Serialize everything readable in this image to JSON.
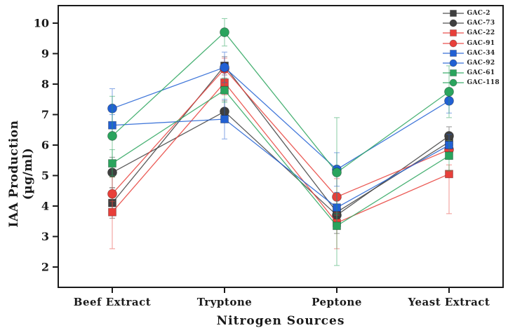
{
  "figure": {
    "background": "#ffffff",
    "axis_color": "#1a1a1a"
  },
  "chart_data": {
    "type": "line",
    "title": "",
    "xlabel": "Nitrogen Sources",
    "ylabel": "IAA Production (µg/ml)",
    "categories": [
      "Beef Extract",
      "Tryptone",
      "Peptone",
      "Yeast Extract"
    ],
    "yticks": [
      2,
      3,
      4,
      5,
      6,
      7,
      8,
      9,
      10
    ],
    "ylim": [
      1.35,
      10.6
    ],
    "grid": false,
    "legend_position": "top-right-inside",
    "series": [
      {
        "name": "GAC-2",
        "color": "#3f3f3f",
        "marker": "square",
        "values": [
          4.1,
          8.6,
          3.8,
          6.1
        ],
        "errors": [
          [
            0.5,
            0.5
          ],
          [
            0.3,
            0.3
          ],
          [
            0.5,
            0.5
          ],
          [
            0.3,
            0.3
          ]
        ]
      },
      {
        "name": "GAC-73",
        "color": "#3f3f3f",
        "marker": "circle",
        "values": [
          5.1,
          7.1,
          3.7,
          6.3
        ],
        "errors": [
          [
            0.5,
            0.5
          ],
          [
            0.35,
            0.35
          ],
          [
            0.6,
            0.6
          ],
          [
            0.3,
            0.3
          ]
        ]
      },
      {
        "name": "GAC-22",
        "color": "#e83f3a",
        "marker": "square",
        "values": [
          3.8,
          8.05,
          3.45,
          5.05
        ],
        "errors": [
          [
            1.2,
            0.35
          ],
          [
            0.4,
            0.4
          ],
          [
            0.85,
            0.35
          ],
          [
            1.3,
            0.3
          ]
        ]
      },
      {
        "name": "GAC-91",
        "color": "#e83f3a",
        "marker": "circle",
        "values": [
          4.4,
          8.5,
          4.3,
          5.85
        ],
        "errors": [
          [
            0.55,
            0.55
          ],
          [
            0.35,
            0.35
          ],
          [
            0.6,
            0.6
          ],
          [
            0.3,
            0.3
          ]
        ]
      },
      {
        "name": "GAC-34",
        "color": "#2160d3",
        "marker": "square",
        "values": [
          6.65,
          6.85,
          3.95,
          6.0
        ],
        "errors": [
          [
            0.35,
            0.35
          ],
          [
            0.65,
            0.65
          ],
          [
            0.5,
            0.5
          ],
          [
            0.35,
            0.35
          ]
        ]
      },
      {
        "name": "GAC-92",
        "color": "#2160d3",
        "marker": "circle",
        "values": [
          7.2,
          8.55,
          5.2,
          7.45
        ],
        "errors": [
          [
            0.6,
            0.65
          ],
          [
            0.5,
            0.5
          ],
          [
            0.55,
            0.55
          ],
          [
            0.4,
            0.4
          ]
        ]
      },
      {
        "name": "GAC-61",
        "color": "#2aa45d",
        "marker": "square",
        "values": [
          5.4,
          7.8,
          3.35,
          5.65
        ],
        "errors": [
          [
            0.45,
            0.45
          ],
          [
            0.4,
            0.4
          ],
          [
            1.3,
            0.4
          ],
          [
            0.5,
            0.5
          ]
        ]
      },
      {
        "name": "GAC-118",
        "color": "#2aa45d",
        "marker": "circle",
        "values": [
          6.3,
          9.7,
          5.1,
          7.75
        ],
        "errors": [
          [
            1.3,
            1.3
          ],
          [
            0.45,
            0.45
          ],
          [
            1.75,
            1.8
          ],
          [
            0.85,
            0.85
          ]
        ]
      }
    ]
  }
}
